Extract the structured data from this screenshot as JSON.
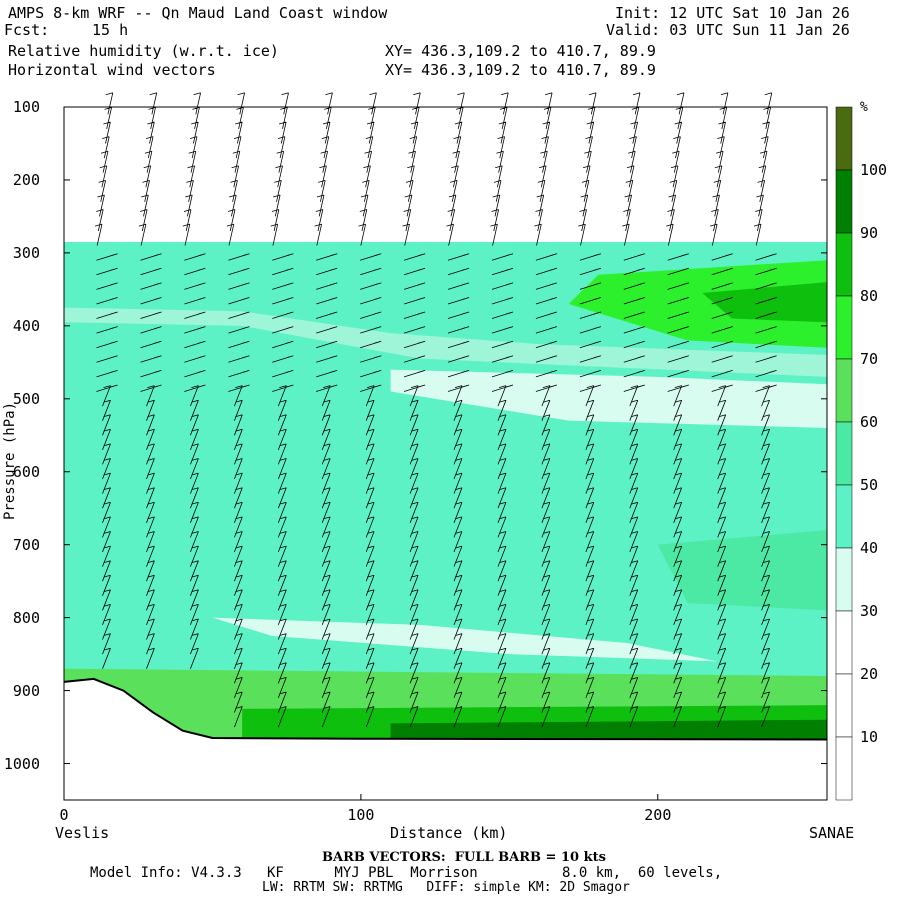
{
  "header": {
    "title": "AMPS 8-km WRF -- Qn Maud Land Coast window",
    "fcst_label": "Fcst:",
    "fcst_value": "15 h",
    "init": "Init: 12 UTC Sat 10 Jan 26",
    "valid": "Valid: 03 UTC Sun 11 Jan 26",
    "field1": "Relative humidity (w.r.t. ice)",
    "field2": "Horizontal wind vectors",
    "xy1": "XY= 436.3,109.2 to 410.7, 89.9",
    "xy2": "XY= 436.3,109.2 to 410.7, 89.9"
  },
  "footer": {
    "barb_note": "BARB VECTORS:  FULL BARB = 10 kts",
    "model_line1": "Model Info: V4.3.3   KF      MYJ PBL  Morrison          8.0 km,  60 levels,",
    "model_line2": "LW: RRTM SW: RRTMG   DIFF: simple KM: 2D Smagor"
  },
  "chart_data": {
    "type": "heatmap",
    "title": "Relative humidity (w.r.t. ice)",
    "xlabel": "Distance (km)",
    "ylabel": "Pressure (hPa)",
    "x_range": [
      0,
      257
    ],
    "y_range": [
      100,
      1050
    ],
    "x_ticks": [
      0,
      100,
      200
    ],
    "x_tick_labels": [
      "0",
      "100",
      "200"
    ],
    "y_ticks": [
      100,
      200,
      300,
      400,
      500,
      600,
      700,
      800,
      900,
      1000
    ],
    "y_tick_labels": [
      "100",
      "200",
      "300",
      "400",
      "500",
      "600",
      "700",
      "800",
      "900",
      "1000"
    ],
    "left_location": "Veslis",
    "right_location": "SANAE",
    "colorbar": {
      "unit": "%",
      "levels": [
        10,
        20,
        30,
        40,
        50,
        60,
        70,
        80,
        90,
        100
      ],
      "labels": [
        "10",
        "20",
        "30",
        "40",
        "50",
        "60",
        "70",
        "80",
        "90",
        "100"
      ],
      "colors": [
        "#ffffff",
        "#ffffff",
        "#ffffff",
        "#d8fdf0",
        "#5cf2c6",
        "#4be9a3",
        "#5be05c",
        "#2bf02b",
        "#0ebf0e",
        "#007f00",
        "#4a6b10"
      ]
    },
    "rh_bands": [
      {
        "name": "upper-dry",
        "p_top": 100,
        "p_bottom": 285,
        "rh": 10
      },
      {
        "name": "upper-moist",
        "p_top": 285,
        "p_bottom": 460,
        "rh": 50
      },
      {
        "name": "mid-moist",
        "p_top": 460,
        "p_bottom": 880,
        "rh": 50
      },
      {
        "name": "low-moist",
        "p_top": 880,
        "p_bottom": 965,
        "rh": 80
      }
    ],
    "terrain_surface_hpa": [
      {
        "x": 0,
        "p": 888
      },
      {
        "x": 10,
        "p": 884
      },
      {
        "x": 20,
        "p": 900
      },
      {
        "x": 30,
        "p": 930
      },
      {
        "x": 40,
        "p": 955
      },
      {
        "x": 50,
        "p": 965
      },
      {
        "x": 100,
        "p": 966
      },
      {
        "x": 257,
        "p": 967
      }
    ],
    "grid": false
  }
}
